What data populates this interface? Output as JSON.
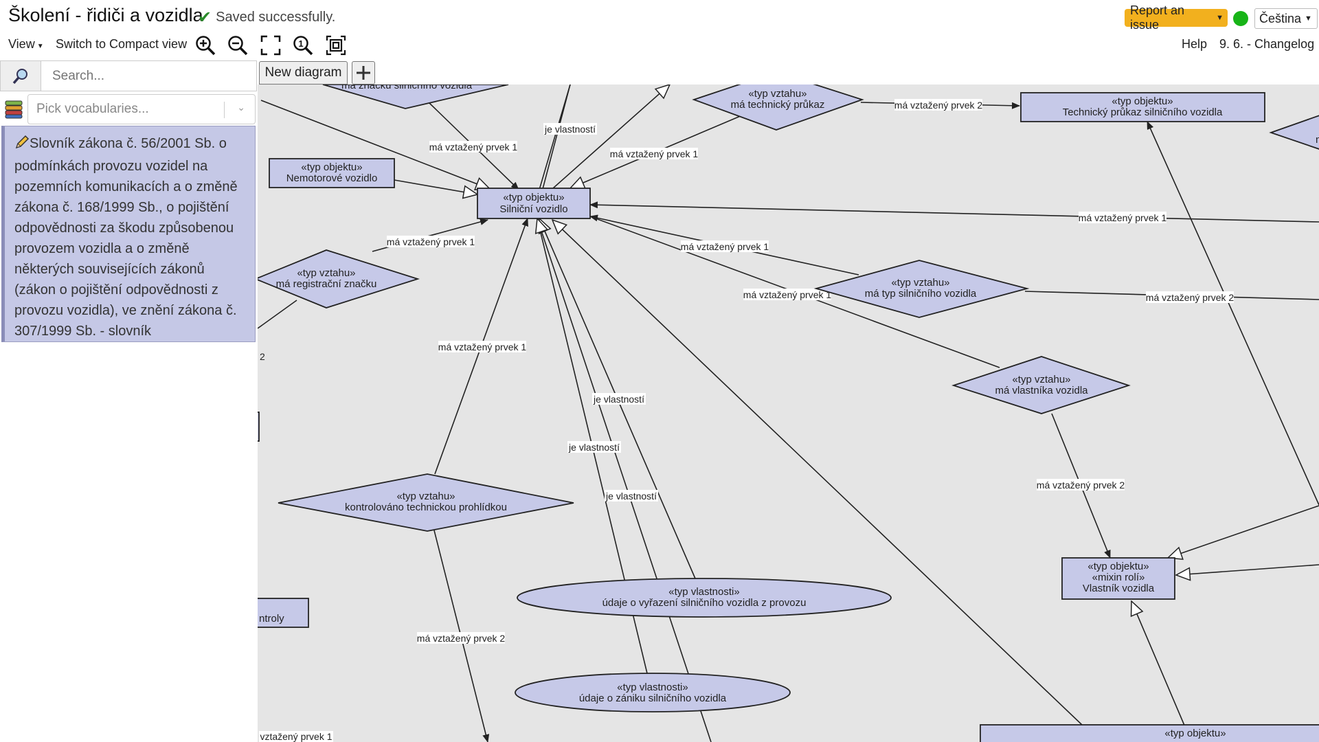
{
  "header": {
    "title": "Školení - řidiči a vozidla",
    "saved_status": "Saved successfully.",
    "report_issue": "Report an issue",
    "language": "Čeština",
    "status_color": "#18b418"
  },
  "toolbar": {
    "view_label": "View",
    "compact_view_label": "Switch to Compact view",
    "tools": [
      "zoom-in-icon",
      "zoom-out-icon",
      "fit-to-screen-icon",
      "actual-size-icon",
      "fit-selection-icon"
    ],
    "help_label": "Help",
    "changelog_label": "9. 6. - Changelog"
  },
  "sidebar": {
    "search_placeholder": "Search...",
    "vocab_placeholder": "Pick vocabularies...",
    "vocabulary_title": "Slovník zákona č. 56/2001 Sb. o podmínkách provozu vozidel na pozemních komunikacích a o změně zákona č. 168/1999 Sb., o pojištění odpovědnosti za škodu způsobenou provozem vozidla a o změně některých souvisejících zákonů (zákon o pojištění odpovědnosti z provozu vozidla), ve znění zákona č. 307/1999 Sb. - slovník"
  },
  "tabs": {
    "diagram_tab": "New diagram",
    "add_tab_icon": "plus-icon"
  },
  "diagram": {
    "node_fill": "#c6c9e8",
    "canvas_bg": "#e5e5e5",
    "nodes": {
      "silnicni_vozidlo": {
        "stereotype": "«typ objektu»",
        "name": "Silniční vozidlo"
      },
      "nemotorove_vozidlo": {
        "stereotype": "«typ objektu»",
        "name": "Nemotorové vozidlo"
      },
      "technicky_prukaz": {
        "stereotype": "«typ objektu»",
        "name": "Technický průkaz silničního vozidla"
      },
      "vlastnik_vozidla": {
        "stereotype": "«typ objektu»",
        "stereotype2": "«mixin rolí»",
        "name": "Vlastník vozidla"
      },
      "objekt_bottom": {
        "stereotype": "«typ objektu»"
      },
      "kontroly_partial": {
        "name": "ntroly"
      },
      "znacka_partial": {
        "name": "má značku silničního vozidla"
      },
      "rel_technicky_prukaz": {
        "stereotype": "«typ vztahu»",
        "name": "má technický průkaz"
      },
      "rel_registracni_znacka": {
        "stereotype": "«typ vztahu»",
        "name": "má registrační značku"
      },
      "rel_typ_vozidla": {
        "stereotype": "«typ vztahu»",
        "name": "má typ silničního vozidla"
      },
      "rel_vlastnik": {
        "stereotype": "«typ vztahu»",
        "name": "má vlastníka vozidla"
      },
      "rel_kontrola": {
        "stereotype": "«typ vztahu»",
        "name": "kontrolováno technickou prohlídkou"
      },
      "rel_right_partial": {
        "name": "má"
      },
      "prop_vyrazeni": {
        "stereotype": "«typ vlastnosti»",
        "name": "údaje o vyřazení silničního vozidla z provozu"
      },
      "prop_zaniku": {
        "stereotype": "«typ vlastnosti»",
        "name": "údaje o zániku silničního vozidla"
      }
    },
    "edge_labels": {
      "prvek1": "má vztažený prvek 1",
      "prvek2": "má vztažený prvek 2",
      "vlastnost": "je vlastností",
      "prvek1_partial": "vztažený prvek 1",
      "two": "2"
    }
  }
}
